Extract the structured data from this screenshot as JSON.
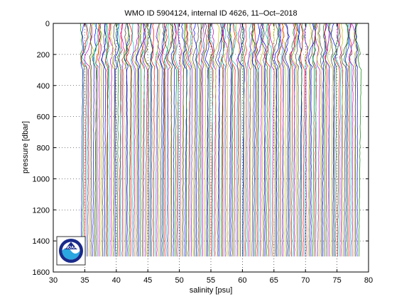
{
  "chart_data": {
    "type": "line",
    "title": "WMO ID 5904124, internal ID 4626, 11–Oct–2018",
    "xlabel": "salinity [psu]",
    "ylabel": "pressure [dbar]",
    "xlim": [
      30,
      80
    ],
    "ylim": [
      0,
      1600
    ],
    "y_reversed": true,
    "grid": "dotted",
    "xticks": [
      30,
      35,
      40,
      45,
      50,
      55,
      60,
      65,
      70,
      75,
      80
    ],
    "yticks": [
      0,
      200,
      400,
      600,
      800,
      1000,
      1200,
      1400,
      1600
    ],
    "series_description": "Waterfall of ~170 salinity profiles, each offset progressively in salinity from about 34.5 to 78.5 psu, with upper 250 dbar varying and deep values nearly constant to ~1500 dbar",
    "profile_count": 170,
    "offset_start": 34.6,
    "offset_end": 78.6,
    "profile_max_pressure": 1500,
    "colors": [
      "#0000ff",
      "#008000",
      "#ff0000",
      "#00bfbf",
      "#bf00bf",
      "#bfbf00",
      "#404040"
    ]
  },
  "logo": {
    "name": "noaa-logo",
    "text": "NOAA"
  }
}
